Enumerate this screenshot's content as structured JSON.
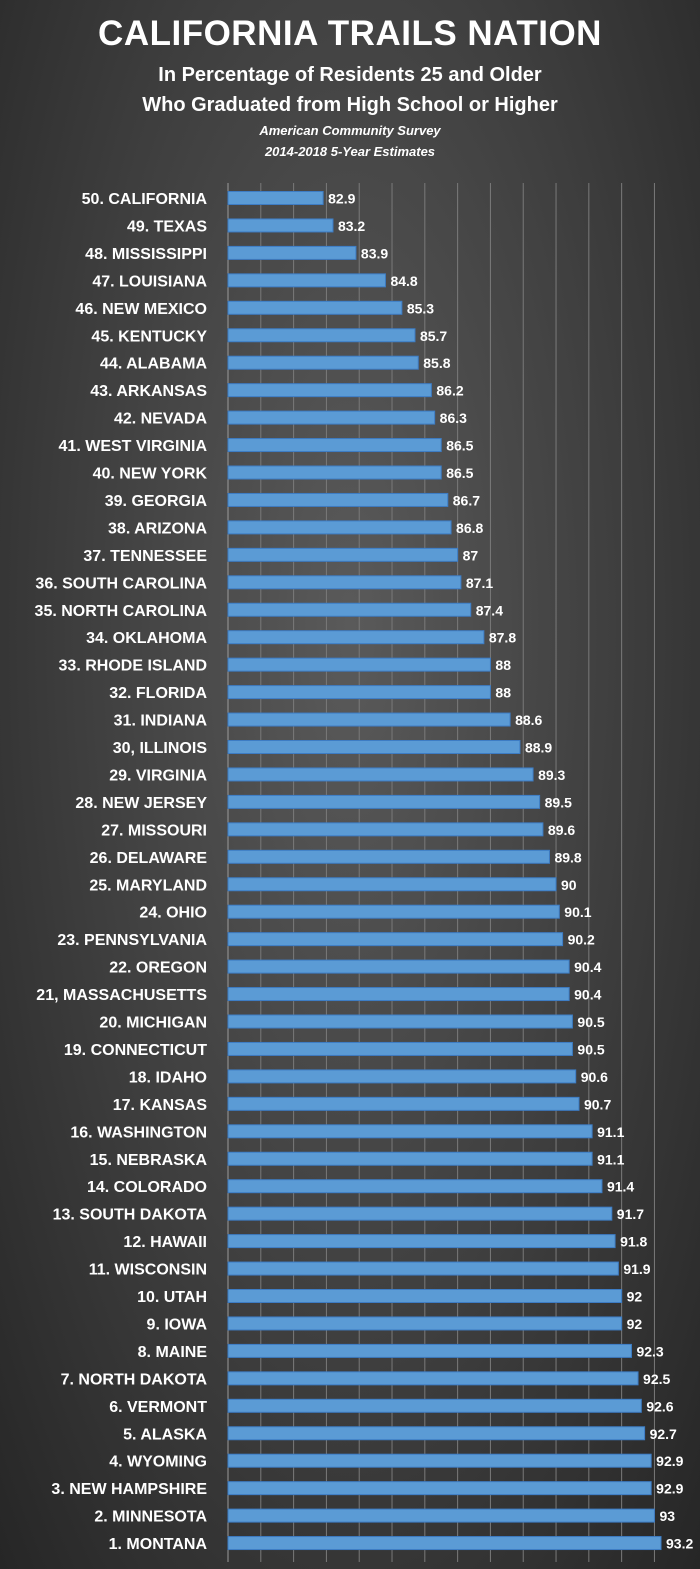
{
  "header": {
    "title": "CALIFORNIA TRAILS NATION",
    "subtitle1": "In Percentage of Residents 25 and Older",
    "subtitle2": "Who Graduated  from High School or Higher",
    "source1": "American Community Survey",
    "source2": "2014-2018 5-Year Estimates"
  },
  "colors": {
    "bar": "#5b9bd5",
    "bar_edge": "#3d7cc4",
    "grid": "#7a7a7a"
  },
  "chart_data": {
    "type": "bar",
    "orientation": "horizontal",
    "title": "CALIFORNIA TRAILS NATION",
    "xlabel": "",
    "ylabel": "",
    "xlim": [
      80,
      93.2
    ],
    "grid": true,
    "categories": [
      "50. CALIFORNIA",
      "49. TEXAS",
      "48. MISSISSIPPI",
      "47. LOUISIANA",
      "46. NEW MEXICO",
      "45. KENTUCKY",
      "44. ALABAMA",
      "43. ARKANSAS",
      "42. NEVADA",
      "41. WEST VIRGINIA",
      "40. NEW YORK",
      "39. GEORGIA",
      "38. ARIZONA",
      "37. TENNESSEE",
      "36. SOUTH CAROLINA",
      "35. NORTH CAROLINA",
      "34. OKLAHOMA",
      "33. RHODE ISLAND",
      "32. FLORIDA",
      "31. INDIANA",
      "30, ILLINOIS",
      "29. VIRGINIA",
      "28. NEW JERSEY",
      "27. MISSOURI",
      "26. DELAWARE",
      "25. MARYLAND",
      "24. OHIO",
      "23. PENNSYLVANIA",
      "22. OREGON",
      "21, MASSACHUSETTS",
      "20. MICHIGAN",
      "19. CONNECTICUT",
      "18. IDAHO",
      "17. KANSAS",
      "16. WASHINGTON",
      "15. NEBRASKA",
      "14. COLORADO",
      "13. SOUTH DAKOTA",
      "12. HAWAII",
      "11. WISCONSIN",
      "10. UTAH",
      "9. IOWA",
      "8. MAINE",
      "7. NORTH DAKOTA",
      "6. VERMONT",
      "5. ALASKA",
      "4. WYOMING",
      "3. NEW HAMPSHIRE",
      "2. MINNESOTA",
      "1. MONTANA"
    ],
    "values": [
      82.9,
      83.2,
      83.9,
      84.8,
      85.3,
      85.7,
      85.8,
      86.2,
      86.3,
      86.5,
      86.5,
      86.7,
      86.8,
      87,
      87.1,
      87.4,
      87.8,
      88,
      88,
      88.6,
      88.9,
      89.3,
      89.5,
      89.6,
      89.8,
      90,
      90.1,
      90.2,
      90.4,
      90.4,
      90.5,
      90.5,
      90.6,
      90.7,
      91.1,
      91.1,
      91.4,
      91.7,
      91.8,
      91.9,
      92,
      92,
      92.3,
      92.5,
      92.6,
      92.7,
      92.9,
      92.9,
      93,
      93.2
    ],
    "value_labels": [
      "82.9",
      "83.2",
      "83.9",
      "84.8",
      "85.3",
      "85.7",
      "85.8",
      "86.2",
      "86.3",
      "86.5",
      "86.5",
      "86.7",
      "86.8",
      "87",
      "87.1",
      "87.4",
      "87.8",
      "88",
      "88",
      "88.6",
      "88.9",
      "89.3",
      "89.5",
      "89.6",
      "89.8",
      "90",
      "90.1",
      "90.2",
      "90.4",
      "90.4",
      "90.5",
      "90.5",
      "90.6",
      "90.7",
      "91.1",
      "91.1",
      "91.4",
      "91.7",
      "91.8",
      "91.9",
      "92",
      "92",
      "92.3",
      "92.5",
      "92.6",
      "92.7",
      "92.9",
      "92.9",
      "93",
      "93.2"
    ]
  }
}
